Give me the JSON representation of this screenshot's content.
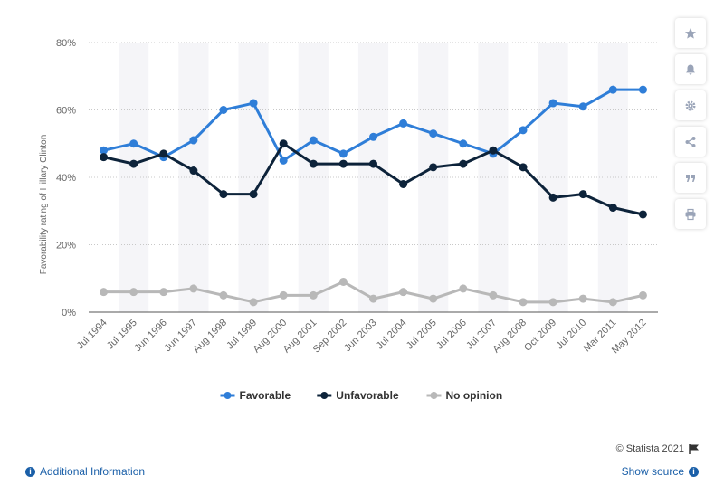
{
  "chart_data": {
    "type": "line",
    "title": "",
    "xlabel": "",
    "ylabel": "Favorability rating of Hillary Clinton",
    "categories": [
      "Jul 1994",
      "Jul 1995",
      "Jun 1996",
      "Jun 1997",
      "Aug 1998",
      "Jul 1999",
      "Aug 2000",
      "Aug 2001",
      "Sep 2002",
      "Jun 2003",
      "Jul 2004",
      "Jul 2005",
      "Jul 2006",
      "Jul 2007",
      "Aug 2008",
      "Oct 2009",
      "Jul 2010",
      "Mar 2011",
      "May 2012"
    ],
    "ylim": [
      0,
      80
    ],
    "yticks": [
      "0%",
      "20%",
      "40%",
      "60%",
      "80%"
    ],
    "grid": true,
    "legend_position": "bottom-center",
    "series": [
      {
        "name": "Favorable",
        "color": "#2f7ed8",
        "values": [
          48,
          50,
          46,
          51,
          60,
          62,
          45,
          51,
          47,
          52,
          56,
          53,
          50,
          47,
          54,
          62,
          61,
          66,
          66
        ]
      },
      {
        "name": "Unfavorable",
        "color": "#0d233a",
        "values": [
          46,
          44,
          47,
          42,
          35,
          35,
          50,
          44,
          44,
          44,
          38,
          43,
          44,
          48,
          43,
          34,
          35,
          31,
          29
        ]
      },
      {
        "name": "No opinion",
        "color": "#b8b8b8",
        "values": [
          6,
          6,
          6,
          7,
          5,
          3,
          5,
          5,
          9,
          4,
          6,
          4,
          7,
          5,
          3,
          3,
          4,
          3,
          5
        ]
      }
    ]
  },
  "footer": {
    "copyright": "© Statista 2021",
    "additional_info": "Additional Information",
    "show_source": "Show source"
  },
  "sidebar": {
    "icons": [
      "star-icon",
      "bell-icon",
      "gear-icon",
      "share-icon",
      "quote-icon",
      "print-icon"
    ]
  }
}
